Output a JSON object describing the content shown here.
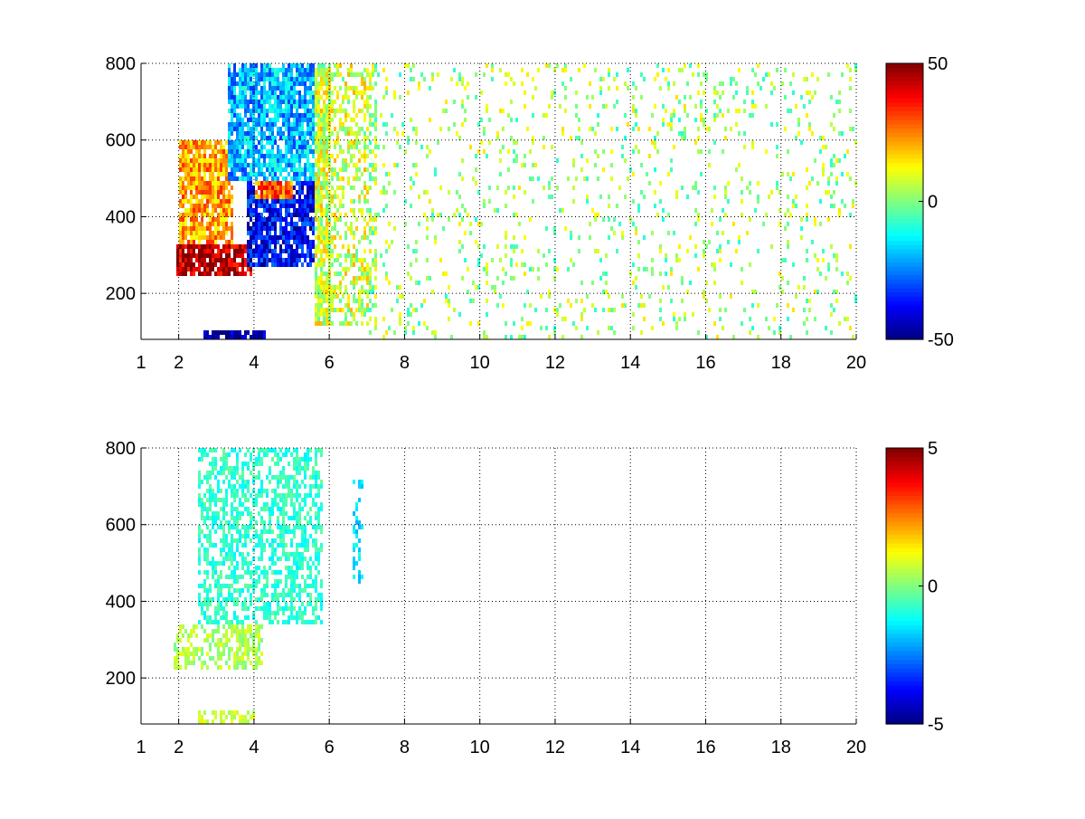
{
  "figure": {
    "background": "#ffffff"
  },
  "chart_data": [
    {
      "type": "heatmap",
      "title": "",
      "xlabel": "",
      "ylabel": "",
      "xlim": [
        1,
        20
      ],
      "ylim": [
        80,
        800
      ],
      "xticks": [
        1,
        2,
        4,
        6,
        8,
        10,
        12,
        14,
        16,
        18,
        20
      ],
      "xtick_labels": [
        "1",
        "2",
        "4",
        "6",
        "8",
        "10",
        "12",
        "14",
        "16",
        "18",
        "20"
      ],
      "yticks": [
        200,
        400,
        600,
        800
      ],
      "ytick_labels": [
        "200",
        "400",
        "600",
        "800"
      ],
      "grid": true,
      "grid_style": "dotted",
      "colormap": "jet",
      "clim": [
        -50,
        50
      ],
      "colorbar_ticks": [
        -50,
        0,
        50
      ],
      "colorbar_tick_labels": [
        "-50",
        "0",
        "50"
      ],
      "features": [
        {
          "x": [
            1.9,
            3.9
          ],
          "y": [
            250,
            330
          ],
          "value": 45
        },
        {
          "x": [
            2.0,
            3.4
          ],
          "y": [
            330,
            600
          ],
          "value": 22
        },
        {
          "x": [
            2.6,
            4.3
          ],
          "y": [
            80,
            115
          ],
          "value": -45
        },
        {
          "x": [
            3.8,
            5.7
          ],
          "y": [
            280,
            500
          ],
          "value": -38
        },
        {
          "x": [
            4.0,
            5.0
          ],
          "y": [
            450,
            720
          ],
          "value": 28
        },
        {
          "x": [
            3.3,
            5.6
          ],
          "y": [
            500,
            800
          ],
          "value": -20
        },
        {
          "x": [
            5.6,
            7.2
          ],
          "y": [
            120,
            800
          ],
          "value": 8
        },
        {
          "x": [
            7.0,
            20.0
          ],
          "y": [
            80,
            800
          ],
          "value": 3
        }
      ]
    },
    {
      "type": "heatmap",
      "title": "",
      "xlabel": "",
      "ylabel": "",
      "xlim": [
        1,
        20
      ],
      "ylim": [
        80,
        800
      ],
      "xticks": [
        1,
        2,
        4,
        6,
        8,
        10,
        12,
        14,
        16,
        18,
        20
      ],
      "xtick_labels": [
        "1",
        "2",
        "4",
        "6",
        "8",
        "10",
        "12",
        "14",
        "16",
        "18",
        "20"
      ],
      "yticks": [
        200,
        400,
        600,
        800
      ],
      "ytick_labels": [
        "200",
        "400",
        "600",
        "800"
      ],
      "grid": true,
      "grid_style": "dotted",
      "colormap": "jet",
      "clim": [
        -5,
        5
      ],
      "colorbar_ticks": [
        -5,
        0,
        5
      ],
      "colorbar_tick_labels": [
        "-5",
        "0",
        "5"
      ],
      "features": [
        {
          "x": [
            1.8,
            4.2
          ],
          "y": [
            230,
            350
          ],
          "value": 0.5
        },
        {
          "x": [
            2.5,
            4.0
          ],
          "y": [
            80,
            120
          ],
          "value": 0.8
        },
        {
          "x": [
            2.5,
            5.8
          ],
          "y": [
            350,
            800
          ],
          "value": -0.8
        },
        {
          "x": [
            6.6,
            6.9
          ],
          "y": [
            450,
            740
          ],
          "value": -1.5
        }
      ]
    }
  ]
}
